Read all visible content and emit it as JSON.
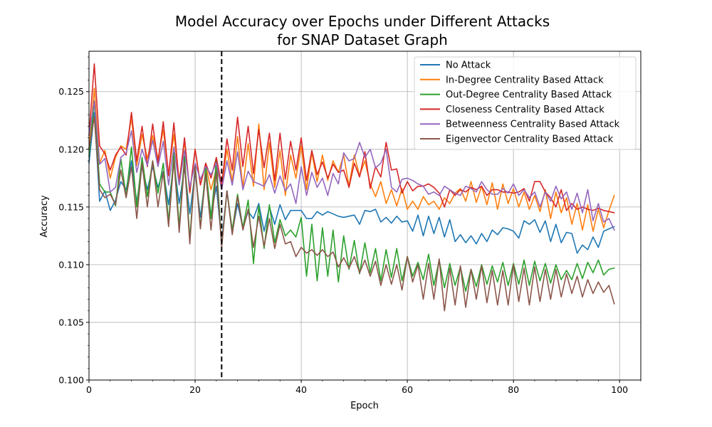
{
  "chart_data": {
    "type": "line",
    "title_line1": "Model Accuracy over Epochs under Different Attacks",
    "title_line2": "for SNAP Dataset Graph",
    "xlabel": "Epoch",
    "ylabel": "Accuracy",
    "xlim": [
      0,
      104
    ],
    "ylim": [
      0.1,
      0.1285
    ],
    "xticks": [
      0,
      20,
      40,
      60,
      80,
      100
    ],
    "yticks": [
      0.1,
      0.105,
      0.11,
      0.115,
      0.12,
      0.125
    ],
    "ytick_labels": [
      "0.100",
      "0.105",
      "0.110",
      "0.115",
      "0.120",
      "0.125"
    ],
    "grid": true,
    "legend_position": "upper-right",
    "vline": {
      "x": 25,
      "style": "dashed",
      "color": "#000000"
    },
    "series": [
      {
        "name": "No Attack",
        "color": "#1f77b4",
        "values": [
          0.1188,
          0.1232,
          0.1155,
          0.1164,
          0.1147,
          0.1156,
          0.1172,
          0.1165,
          0.119,
          0.1154,
          0.1185,
          0.1165,
          0.1185,
          0.1167,
          0.1181,
          0.1152,
          0.1188,
          0.1153,
          0.1184,
          0.1144,
          0.118,
          0.1141,
          0.1178,
          0.1143,
          0.1168,
          0.112,
          0.1164,
          0.1128,
          0.1153,
          0.1132,
          0.1146,
          0.114,
          0.1153,
          0.1129,
          0.115,
          0.1135,
          0.1152,
          0.1139,
          0.1147,
          0.1147,
          0.1147,
          0.114,
          0.114,
          0.1146,
          0.1143,
          0.1146,
          0.1144,
          0.1142,
          0.1141,
          0.1142,
          0.1143,
          0.1135,
          0.1147,
          0.1146,
          0.1148,
          0.1137,
          0.1141,
          0.1136,
          0.1142,
          0.1137,
          0.1138,
          0.1129,
          0.1143,
          0.1125,
          0.1142,
          0.1127,
          0.1141,
          0.1124,
          0.1139,
          0.112,
          0.1126,
          0.1119,
          0.1125,
          0.1118,
          0.1127,
          0.112,
          0.113,
          0.1126,
          0.1132,
          0.1131,
          0.1129,
          0.1123,
          0.1138,
          0.1135,
          0.1139,
          0.1128,
          0.1138,
          0.112,
          0.1135,
          0.1119,
          0.1128,
          0.1127,
          0.111,
          0.1117,
          0.1113,
          0.1124,
          0.1115,
          0.1129,
          0.1131,
          0.1133
        ]
      },
      {
        "name": "In-Degree Centrality Based Attack",
        "color": "#ff7f0e",
        "values": [
          0.12,
          0.1253,
          0.1188,
          0.1199,
          0.1175,
          0.1193,
          0.1203,
          0.12,
          0.1227,
          0.1186,
          0.1213,
          0.1192,
          0.1212,
          0.1192,
          0.1217,
          0.1178,
          0.1213,
          0.1173,
          0.1207,
          0.1162,
          0.12,
          0.117,
          0.1186,
          0.1165,
          0.1183,
          0.1168,
          0.12,
          0.1172,
          0.1211,
          0.1167,
          0.1205,
          0.1168,
          0.1222,
          0.1165,
          0.1206,
          0.1167,
          0.1199,
          0.116,
          0.1195,
          0.1175,
          0.1203,
          0.1165,
          0.1197,
          0.1172,
          0.1195,
          0.1173,
          0.119,
          0.118,
          0.1195,
          0.1168,
          0.1195,
          0.1177,
          0.119,
          0.117,
          0.1159,
          0.1172,
          0.1153,
          0.1165,
          0.1151,
          0.1166,
          0.1148,
          0.1155,
          0.1148,
          0.1159,
          0.1152,
          0.1155,
          0.1148,
          0.1158,
          0.1153,
          0.1162,
          0.1166,
          0.1155,
          0.1172,
          0.1154,
          0.1168,
          0.1152,
          0.1171,
          0.1148,
          0.117,
          0.1153,
          0.1166,
          0.115,
          0.1163,
          0.1148,
          0.116,
          0.1146,
          0.1165,
          0.114,
          0.1163,
          0.1145,
          0.1158,
          0.1135,
          0.1153,
          0.113,
          0.1152,
          0.1129,
          0.1148,
          0.1132,
          0.1147,
          0.116
        ]
      },
      {
        "name": "Out-Degree Centrality Based Attack",
        "color": "#2ca02c",
        "values": [
          0.1194,
          0.1242,
          0.117,
          0.1163,
          0.1163,
          0.1151,
          0.1192,
          0.1159,
          0.1202,
          0.115,
          0.1193,
          0.1159,
          0.119,
          0.1162,
          0.1188,
          0.1137,
          0.1197,
          0.1133,
          0.1194,
          0.1122,
          0.1187,
          0.1132,
          0.1185,
          0.114,
          0.119,
          0.1116,
          0.1164,
          0.113,
          0.1161,
          0.1132,
          0.1156,
          0.1101,
          0.1151,
          0.1114,
          0.1152,
          0.1119,
          0.1139,
          0.1125,
          0.113,
          0.1124,
          0.1141,
          0.109,
          0.1135,
          0.1086,
          0.1132,
          0.109,
          0.113,
          0.1085,
          0.1125,
          0.1096,
          0.1121,
          0.1092,
          0.1119,
          0.1093,
          0.1114,
          0.1086,
          0.1113,
          0.1089,
          0.1114,
          0.1086,
          0.1107,
          0.109,
          0.1102,
          0.1087,
          0.1109,
          0.1082,
          0.1104,
          0.108,
          0.1101,
          0.1082,
          0.1098,
          0.1077,
          0.1096,
          0.1081,
          0.11,
          0.1083,
          0.1099,
          0.1085,
          0.1102,
          0.1082,
          0.1101,
          0.1083,
          0.1104,
          0.1082,
          0.1103,
          0.1086,
          0.1101,
          0.1084,
          0.11,
          0.1087,
          0.1095,
          0.1087,
          0.1101,
          0.1088,
          0.1102,
          0.1093,
          0.1104,
          0.1091,
          0.1096,
          0.1097
        ]
      },
      {
        "name": "Closeness Centrality Based Attack",
        "color": "#d62728",
        "values": [
          0.1212,
          0.1274,
          0.1203,
          0.1196,
          0.1182,
          0.1195,
          0.1202,
          0.1195,
          0.1232,
          0.119,
          0.122,
          0.1185,
          0.1222,
          0.1188,
          0.1224,
          0.1177,
          0.1223,
          0.117,
          0.121,
          0.1163,
          0.12,
          0.1169,
          0.1188,
          0.1175,
          0.1193,
          0.1169,
          0.1209,
          0.1182,
          0.1228,
          0.1185,
          0.122,
          0.1179,
          0.1217,
          0.1184,
          0.1214,
          0.1173,
          0.1214,
          0.1174,
          0.1207,
          0.1182,
          0.121,
          0.1173,
          0.1199,
          0.1178,
          0.1189,
          0.1175,
          0.1187,
          0.118,
          0.1182,
          0.1167,
          0.1188,
          0.1176,
          0.1198,
          0.1166,
          0.1185,
          0.1176,
          0.1206,
          0.1182,
          0.1183,
          0.1162,
          0.1172,
          0.1164,
          0.1168,
          0.1168,
          0.117,
          0.1167,
          0.1162,
          0.115,
          0.1165,
          0.116,
          0.1165,
          0.1163,
          0.1167,
          0.1165,
          0.1168,
          0.116,
          0.1165,
          0.1165,
          0.1163,
          0.1163,
          0.1162,
          0.1163,
          0.1166,
          0.1155,
          0.1172,
          0.1172,
          0.1163,
          0.1158,
          0.115,
          0.1165,
          0.1147,
          0.1153,
          0.1148,
          0.115,
          0.1148,
          0.1147,
          0.1149,
          0.1147,
          0.1146,
          0.1145
        ]
      },
      {
        "name": "Betweenness Centrality Based Attack",
        "color": "#9467bd",
        "values": [
          0.1212,
          0.1242,
          0.1187,
          0.1192,
          0.1163,
          0.1167,
          0.1193,
          0.1197,
          0.1216,
          0.118,
          0.12,
          0.1186,
          0.1208,
          0.1185,
          0.1207,
          0.1169,
          0.1202,
          0.1169,
          0.1199,
          0.1167,
          0.1188,
          0.1174,
          0.1185,
          0.1178,
          0.1188,
          0.1165,
          0.119,
          0.1169,
          0.1198,
          0.1165,
          0.1181,
          0.1172,
          0.117,
          0.1168,
          0.1178,
          0.1162,
          0.1177,
          0.1164,
          0.117,
          0.1153,
          0.1185,
          0.116,
          0.118,
          0.1167,
          0.1175,
          0.116,
          0.1179,
          0.117,
          0.1197,
          0.119,
          0.1192,
          0.1206,
          0.1193,
          0.12,
          0.1184,
          0.1188,
          0.12,
          0.1167,
          0.1163,
          0.1174,
          0.1175,
          0.1173,
          0.117,
          0.1168,
          0.1161,
          0.1163,
          0.116,
          0.1168,
          0.1165,
          0.1162,
          0.116,
          0.1168,
          0.1166,
          0.1163,
          0.1172,
          0.1165,
          0.1161,
          0.1161,
          0.1166,
          0.1162,
          0.117,
          0.116,
          0.1165,
          0.1158,
          0.1163,
          0.115,
          0.1163,
          0.1155,
          0.1168,
          0.1157,
          0.1163,
          0.1148,
          0.1162,
          0.1145,
          0.1165,
          0.1138,
          0.1153,
          0.1137,
          0.114,
          0.113
        ]
      },
      {
        "name": "Eigenvector Centrality Based Attack",
        "color": "#8c564b",
        "values": [
          0.1201,
          0.1228,
          0.1165,
          0.1158,
          0.1161,
          0.1152,
          0.1182,
          0.1158,
          0.1185,
          0.114,
          0.1188,
          0.115,
          0.119,
          0.115,
          0.118,
          0.1133,
          0.1191,
          0.1128,
          0.1189,
          0.1118,
          0.1185,
          0.1131,
          0.1179,
          0.113,
          0.1181,
          0.1115,
          0.1164,
          0.1126,
          0.1159,
          0.113,
          0.1148,
          0.1115,
          0.1142,
          0.1116,
          0.114,
          0.1114,
          0.1135,
          0.1118,
          0.112,
          0.1107,
          0.1115,
          0.111,
          0.1113,
          0.1108,
          0.1113,
          0.1107,
          0.1111,
          0.1098,
          0.1106,
          0.1097,
          0.1107,
          0.1093,
          0.1104,
          0.109,
          0.1103,
          0.1082,
          0.11,
          0.1083,
          0.11,
          0.1078,
          0.1107,
          0.1085,
          0.11,
          0.107,
          0.1101,
          0.107,
          0.1105,
          0.106,
          0.1097,
          0.1065,
          0.1099,
          0.1063,
          0.1096,
          0.107,
          0.1099,
          0.1067,
          0.1095,
          0.1065,
          0.1095,
          0.1065,
          0.11,
          0.1068,
          0.1097,
          0.1065,
          0.1098,
          0.1068,
          0.1096,
          0.107,
          0.1096,
          0.1072,
          0.1092,
          0.1075,
          0.109,
          0.1072,
          0.1087,
          0.1075,
          0.1085,
          0.1076,
          0.1082,
          0.1066
        ]
      }
    ]
  }
}
